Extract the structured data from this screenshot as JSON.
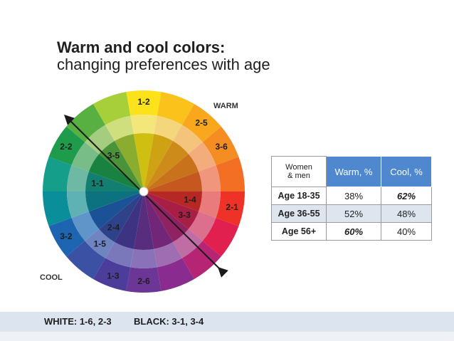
{
  "title": {
    "line1": "Warm and cool colors:",
    "line2": "changing preferences with age"
  },
  "wheel": {
    "warm_label": "WARM",
    "cool_label": "COOL",
    "outer_ring": [
      {
        "label": "1-2",
        "color": "#fbe21a"
      },
      {
        "label": "",
        "color": "#fbc21c"
      },
      {
        "label": "2-5",
        "color": "#f9a81d"
      },
      {
        "label": "3-6",
        "color": "#f58d22"
      },
      {
        "label": "",
        "color": "#f26f24"
      },
      {
        "label": "2-1",
        "color": "#ee3227"
      },
      {
        "label": "",
        "color": "#e1204f"
      },
      {
        "label": "",
        "color": "#b62574"
      },
      {
        "label": "",
        "color": "#8a2c8f"
      },
      {
        "label": "2-6",
        "color": "#6c3696"
      },
      {
        "label": "1-3",
        "color": "#4c3d9b"
      },
      {
        "label": "",
        "color": "#3b52a4"
      },
      {
        "label": "3-2",
        "color": "#1d64b1"
      },
      {
        "label": "",
        "color": "#0a8f9a"
      },
      {
        "label": "",
        "color": "#159e8a"
      },
      {
        "label": "2-2",
        "color": "#1e9b4b"
      },
      {
        "label": "",
        "color": "#57b041"
      },
      {
        "label": "",
        "color": "#a6cf39"
      }
    ],
    "middle_ring": [
      {
        "label": "",
        "color": "#f3e77a"
      },
      {
        "label": "",
        "color": "#f4d67c"
      },
      {
        "label": "",
        "color": "#f4c37c"
      },
      {
        "label": "",
        "color": "#f3ad7c"
      },
      {
        "label": "",
        "color": "#f0967d"
      },
      {
        "label": "",
        "color": "#ea7b7c"
      },
      {
        "label": "",
        "color": "#dc6f8d"
      },
      {
        "label": "",
        "color": "#c06da4"
      },
      {
        "label": "",
        "color": "#9f6db2"
      },
      {
        "label": "",
        "color": "#8a72b8"
      },
      {
        "label": "",
        "color": "#7a78bb"
      },
      {
        "label": "1-5",
        "color": "#6f85c1"
      },
      {
        "label": "",
        "color": "#5f95c8"
      },
      {
        "label": "",
        "color": "#5fb2b3"
      },
      {
        "label": "",
        "color": "#6db9a3"
      },
      {
        "label": "",
        "color": "#78bc87"
      },
      {
        "label": "",
        "color": "#a4cd80"
      },
      {
        "label": "",
        "color": "#cfdf7d"
      }
    ],
    "inner_ring": [
      {
        "label": "",
        "color": "#cfbf10"
      },
      {
        "label": "",
        "color": "#cfa214"
      },
      {
        "label": "",
        "color": "#cd8c19"
      },
      {
        "label": "",
        "color": "#c8721c"
      },
      {
        "label": "",
        "color": "#c4581f"
      },
      {
        "label": "1-4",
        "color": "#b52823"
      },
      {
        "label": "3-3",
        "color": "#a81e45"
      },
      {
        "label": "",
        "color": "#8f2262"
      },
      {
        "label": "",
        "color": "#712678"
      },
      {
        "label": "",
        "color": "#582d7e"
      },
      {
        "label": "",
        "color": "#3e3282"
      },
      {
        "label": "2-4",
        "color": "#2e4289"
      },
      {
        "label": "",
        "color": "#1b5295"
      },
      {
        "label": "",
        "color": "#0c7280"
      },
      {
        "label": "1-1",
        "color": "#137f70"
      },
      {
        "label": "",
        "color": "#198241"
      },
      {
        "label": "3-5",
        "color": "#4a9338"
      },
      {
        "label": "",
        "color": "#8aad30"
      }
    ]
  },
  "table": {
    "corner_line1": "Women",
    "corner_line2": "& men",
    "col_warm": "Warm, %",
    "col_cool": "Cool, %",
    "rows": [
      {
        "label": "Age 18-35",
        "warm": "38%",
        "cool": "62%"
      },
      {
        "label": "Age 36-55",
        "warm": "52%",
        "cool": "48%"
      },
      {
        "label": "Age 56+",
        "warm": "60%",
        "cool": "40%"
      }
    ]
  },
  "footer": {
    "white": "WHITE: 1-6, 2-3",
    "black": "BLACK: 3-1, 3-4"
  }
}
